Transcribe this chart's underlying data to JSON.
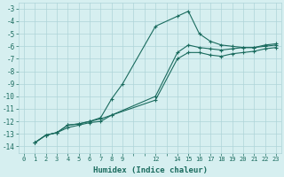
{
  "title": "",
  "xlabel": "Humidex (Indice chaleur)",
  "ylabel": "",
  "bg_color": "#d6eff0",
  "line_color": "#1a6b5e",
  "grid_color": "#aed4d8",
  "ylim": [
    -14.5,
    -2.5
  ],
  "xlim": [
    -0.5,
    23.5
  ],
  "yticks": [
    -14,
    -13,
    -12,
    -11,
    -10,
    -9,
    -8,
    -7,
    -6,
    -5,
    -4,
    -3
  ],
  "xtick_positions": [
    0,
    1,
    2,
    3,
    4,
    5,
    6,
    7,
    8,
    9,
    12,
    14,
    15,
    16,
    17,
    18,
    19,
    20,
    21,
    22,
    23
  ],
  "xtick_labels": [
    "0",
    "1",
    "2",
    "3",
    "4",
    "5",
    "6",
    "7",
    "8",
    "9",
    "12",
    "14",
    "15",
    "16",
    "17",
    "18",
    "19",
    "20",
    "21",
    "22",
    "23"
  ],
  "series": [
    {
      "x": [
        1,
        2,
        3,
        4,
        5,
        6,
        7,
        8,
        9,
        12,
        14,
        15,
        16,
        17,
        18,
        19,
        20,
        21,
        22,
        23
      ],
      "y": [
        -13.7,
        -13.1,
        -12.9,
        -12.3,
        -12.2,
        -12.0,
        -11.7,
        -10.2,
        -9.0,
        -4.4,
        -3.6,
        -3.2,
        -5.0,
        -5.6,
        -5.9,
        -6.0,
        -6.1,
        -6.1,
        -6.0,
        -5.9
      ]
    },
    {
      "x": [
        1,
        2,
        3,
        4,
        5,
        6,
        7,
        8,
        12,
        14,
        15,
        16,
        17,
        18,
        19,
        20,
        21,
        22,
        23
      ],
      "y": [
        -13.7,
        -13.1,
        -12.9,
        -12.3,
        -12.2,
        -12.0,
        -11.8,
        -11.5,
        -10.0,
        -6.5,
        -5.9,
        -6.1,
        -6.2,
        -6.3,
        -6.2,
        -6.1,
        -6.1,
        -5.9,
        -5.8
      ]
    },
    {
      "x": [
        1,
        2,
        3,
        4,
        5,
        6,
        7,
        8,
        12,
        14,
        15,
        16,
        17,
        18,
        19,
        20,
        21,
        22,
        23
      ],
      "y": [
        -13.7,
        -13.1,
        -12.9,
        -12.5,
        -12.3,
        -12.1,
        -12.0,
        -11.5,
        -10.3,
        -7.0,
        -6.5,
        -6.5,
        -6.7,
        -6.8,
        -6.6,
        -6.5,
        -6.4,
        -6.2,
        -6.1
      ]
    }
  ]
}
